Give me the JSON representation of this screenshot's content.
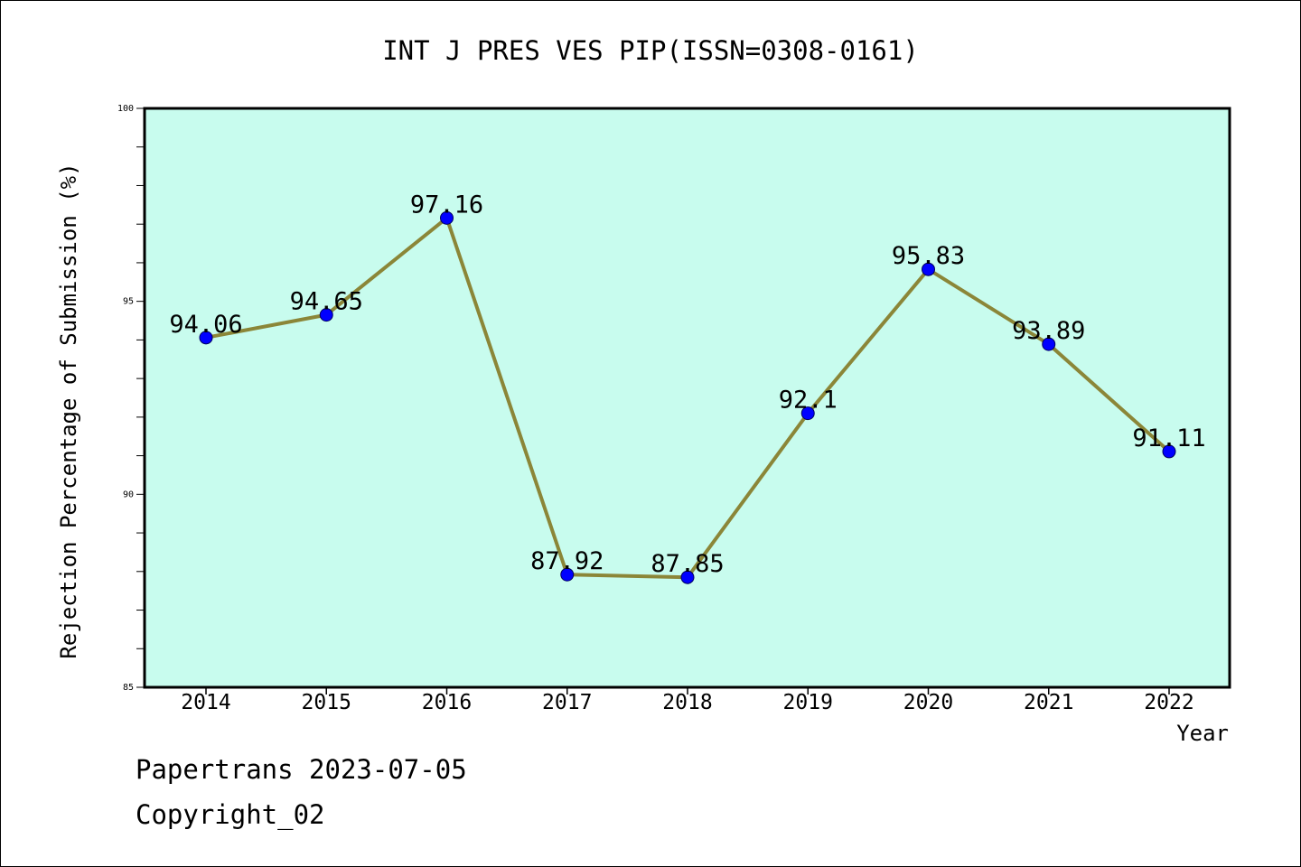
{
  "chart_data": {
    "type": "line",
    "title": "INT J PRES VES PIP(ISSN=0308-0161)",
    "xlabel": "Year",
    "ylabel": "Rejection Percentage of Submission (%)",
    "categories": [
      "2014",
      "2015",
      "2016",
      "2017",
      "2018",
      "2019",
      "2020",
      "2021",
      "2022"
    ],
    "values": [
      94.06,
      94.65,
      97.16,
      87.92,
      87.85,
      92.1,
      95.83,
      93.89,
      91.11
    ],
    "data_labels": [
      "94.06",
      "94.65",
      "97.16",
      "87.92",
      "87.85",
      "92.1",
      "95.83",
      "93.89",
      "91.11"
    ],
    "ylim": [
      85,
      100
    ],
    "yticks": [
      "85",
      "90",
      "95",
      "100"
    ],
    "grid": false,
    "colors": {
      "plot_background": "#c8fcee",
      "line": "#8b8638",
      "marker": "#0000ff"
    }
  },
  "footer": {
    "line1": "Papertrans 2023-07-05",
    "line2": "Copyright_02"
  }
}
